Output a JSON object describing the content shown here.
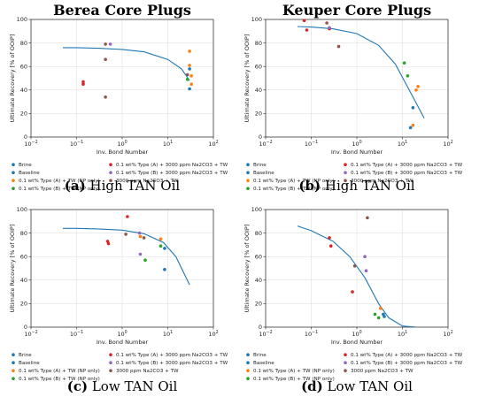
{
  "figure": {
    "panels": [
      {
        "title": "Berea Core Plugs",
        "caption_letter": "(a)",
        "caption_text": "High TAN Oil",
        "legend": [
          [
            "Brine",
            "0.1 wt% Type (A) + 3000 ppm Na2CO3 + TW"
          ],
          [
            "Baseline",
            "0.1 wt% Type (B) + 3000 ppm Na2CO3 + TW"
          ],
          [
            "0.1 wt% Type (A) + TW (NP only)",
            "3000 ppm Na2CO3 + TW"
          ],
          [
            "0.1 wt% Type (B) + TW (NP only)",
            ""
          ]
        ]
      },
      {
        "title": "Keuper Core Plugs",
        "caption_letter": "(b)",
        "caption_text": "High TAN Oil",
        "legend": [
          [
            "Brine",
            "0.1 wt% Type (A) + 3000 ppm Na2CO3 + TW"
          ],
          [
            "Baseline",
            "0.1 wt% Type (B) + 3000 ppm Na2CO3 + TW"
          ],
          [
            "0.1 wt% Type (A) + TW (NP only)",
            "3000 ppm Na2CO3 + TW"
          ],
          [
            "0.1 wt% Type (B) + TW (NP only)",
            ""
          ]
        ]
      },
      {
        "title": "",
        "caption_letter": "(c)",
        "caption_text": "Low TAN Oil",
        "legend": [
          [
            "Brine",
            "0.1 wt% Type (A) + 3000 ppm Na2CO3 + TW"
          ],
          [
            "Baseline",
            "0.1 wt% Type (B) + 3000 ppm Na2CO3 + TW"
          ],
          [
            "0.1 wt% Type (A) + TW (NP only)",
            "3000 ppm Na2CO3 + TW"
          ],
          [
            "0.1 wt% Type (B) + TW (NP only)",
            ""
          ]
        ]
      },
      {
        "title": "",
        "caption_letter": "(d)",
        "caption_text": "Low TAN Oil",
        "legend": [
          [
            "Brine",
            "0.1 wt% Type (A) + 3000 ppm Na2CO3 + TW"
          ],
          [
            "Baseline",
            "0.1 wt% Type (B) + 3000 ppm Na2CO3 + TW"
          ],
          [
            "0.1 wt% Type (A) + TW (NP only)",
            "3000 ppm Na2CO3 + TW"
          ],
          [
            "0.1 wt% Type (B) + TW (NP only)",
            ""
          ]
        ]
      }
    ]
  },
  "series_colors": {
    "Brine": "#1f77b4",
    "Baseline": "#1f77b4",
    "0.1 wt% Type (A) + TW (NP only)": "#ff7f0e",
    "0.1 wt% Type (B) + TW (NP only)": "#2ca02c",
    "0.1 wt% Type (A) + 3000 ppm Na2CO3 + TW": "#d62728",
    "0.1 wt% Type (B) + 3000 ppm Na2CO3 + TW": "#9467bd",
    "3000 ppm Na2CO3 + TW": "#8c564b"
  },
  "chart_data": [
    {
      "type": "scatter",
      "title": "Berea Core Plugs",
      "xlabel": "Inv. Bond Number",
      "ylabel": "Ultimate Recovery [% of OOIP]",
      "xscale": "log",
      "xlim": [
        0.01,
        100
      ],
      "ylim": [
        0,
        100
      ],
      "xticks": [
        "10^-2",
        "10^-1",
        "10^0",
        "10^1",
        "10^2"
      ],
      "yticks": [
        0,
        20,
        40,
        60,
        80,
        100
      ],
      "grid": true,
      "legend_position": "bottom",
      "fit_curve": {
        "x": [
          0.05,
          0.1,
          0.3,
          1,
          3,
          10,
          20,
          30
        ],
        "y": [
          76,
          76,
          75.5,
          74.5,
          72.5,
          66,
          58,
          48
        ]
      },
      "series": [
        {
          "name": "Brine",
          "x": [
            30
          ],
          "y": [
            41
          ]
        },
        {
          "name": "Baseline",
          "x": [
            30
          ],
          "y": [
            58
          ]
        },
        {
          "name": "0.1 wt% Type (A) + TW (NP only)",
          "x": [
            30,
            30,
            33,
            33
          ],
          "y": [
            73,
            61,
            52,
            45
          ]
        },
        {
          "name": "0.1 wt% Type (B) + TW (NP only)",
          "x": [
            27
          ],
          "y": [
            49
          ]
        },
        {
          "name": "0.1 wt% Type (A) + 3000 ppm Na2CO3 + TW",
          "x": [
            0.14,
            0.14
          ],
          "y": [
            47,
            45
          ]
        },
        {
          "name": "0.1 wt% Type (B) + 3000 ppm Na2CO3 + TW",
          "x": [
            0.55
          ],
          "y": [
            79
          ]
        },
        {
          "name": "3000 ppm Na2CO3 + TW",
          "x": [
            0.43,
            0.43,
            0.43,
            27
          ],
          "y": [
            79,
            66,
            34,
            53
          ]
        }
      ]
    },
    {
      "type": "scatter",
      "title": "Keuper Core Plugs",
      "xlabel": "Inv. Bond Number",
      "ylabel": "Ultimate Recovery [% of OOIP]",
      "xscale": "log",
      "xlim": [
        0.01,
        100
      ],
      "ylim": [
        0,
        100
      ],
      "xticks": [
        "10^-2",
        "10^-1",
        "10^0",
        "10^1",
        "10^2"
      ],
      "yticks": [
        0,
        20,
        40,
        60,
        80,
        100
      ],
      "grid": true,
      "legend_position": "bottom",
      "fit_curve": {
        "x": [
          0.05,
          0.1,
          0.3,
          1,
          3,
          7,
          15,
          30
        ],
        "y": [
          94,
          93.5,
          92,
          88,
          78,
          62,
          38,
          16
        ]
      },
      "series": [
        {
          "name": "Brine",
          "x": [
            17
          ],
          "y": [
            25
          ]
        },
        {
          "name": "Baseline",
          "x": [
            15
          ],
          "y": [
            8
          ]
        },
        {
          "name": "0.1 wt% Type (A) + TW (NP only)",
          "x": [
            17,
            20,
            22
          ],
          "y": [
            10,
            40,
            43
          ]
        },
        {
          "name": "0.1 wt% Type (B) + TW (NP only)",
          "x": [
            11,
            13
          ],
          "y": [
            63,
            52
          ]
        },
        {
          "name": "0.1 wt% Type (A) + 3000 ppm Na2CO3 + TW",
          "x": [
            0.07,
            0.08,
            0.25
          ],
          "y": [
            99,
            91,
            92
          ]
        },
        {
          "name": "0.1 wt% Type (B) + 3000 ppm Na2CO3 + TW",
          "x": [
            0.25
          ],
          "y": [
            93
          ]
        },
        {
          "name": "3000 ppm Na2CO3 + TW",
          "x": [
            0.22,
            0.4
          ],
          "y": [
            97,
            77
          ]
        }
      ]
    },
    {
      "type": "scatter",
      "title": "",
      "xlabel": "Inv. Bond Number",
      "ylabel": "Ultimate Recovery [% of OOIP]",
      "xscale": "log",
      "xlim": [
        0.01,
        100
      ],
      "ylim": [
        0,
        100
      ],
      "xticks": [
        "10^-2",
        "10^-1",
        "10^0",
        "10^1",
        "10^2"
      ],
      "yticks": [
        0,
        20,
        40,
        60,
        80,
        100
      ],
      "grid": true,
      "legend_position": "bottom",
      "fit_curve": {
        "x": [
          0.05,
          0.1,
          0.3,
          1,
          3,
          8,
          15,
          30
        ],
        "y": [
          84,
          84,
          83.5,
          82.5,
          79.5,
          72,
          60,
          36
        ]
      },
      "series": [
        {
          "name": "Brine",
          "x": [
            8.5
          ],
          "y": [
            49
          ]
        },
        {
          "name": "Baseline",
          "x": [
            8.5
          ],
          "y": [
            67
          ]
        },
        {
          "name": "0.1 wt% Type (A) + TW (NP only)",
          "x": [
            2.5,
            7
          ],
          "y": [
            77,
            75
          ]
        },
        {
          "name": "0.1 wt% Type (B) + TW (NP only)",
          "x": [
            3.2,
            7
          ],
          "y": [
            57,
            69
          ]
        },
        {
          "name": "0.1 wt% Type (A) + 3000 ppm Na2CO3 + TW",
          "x": [
            0.48,
            0.5,
            1.3
          ],
          "y": [
            73,
            71,
            94
          ]
        },
        {
          "name": "0.1 wt% Type (B) + 3000 ppm Na2CO3 + TW",
          "x": [
            2.4,
            2.5
          ],
          "y": [
            80,
            62
          ]
        },
        {
          "name": "3000 ppm Na2CO3 + TW",
          "x": [
            1.2,
            3.0
          ],
          "y": [
            79,
            76
          ]
        }
      ]
    },
    {
      "type": "scatter",
      "title": "",
      "xlabel": "Inv. Bond Number",
      "ylabel": "Ultimate Recovery [% of OOIP]",
      "xscale": "log",
      "xlim": [
        0.01,
        100
      ],
      "ylim": [
        0,
        100
      ],
      "xticks": [
        "10^-2",
        "10^-1",
        "10^0",
        "10^1",
        "10^2"
      ],
      "yticks": [
        0,
        20,
        40,
        60,
        80,
        100
      ],
      "grid": true,
      "legend_position": "bottom",
      "fit_curve": {
        "x": [
          0.05,
          0.1,
          0.3,
          0.7,
          1.5,
          3,
          5,
          10,
          20
        ],
        "y": [
          86,
          82,
          73,
          60,
          42,
          20,
          8,
          1,
          0
        ]
      },
      "series": [
        {
          "name": "Brine",
          "x": [
            3.8
          ],
          "y": [
            11
          ]
        },
        {
          "name": "Baseline",
          "x": [
            4.0
          ],
          "y": [
            9
          ]
        },
        {
          "name": "0.1 wt% Type (A) + TW (NP only)",
          "x": [
            3.3
          ],
          "y": [
            16
          ]
        },
        {
          "name": "0.1 wt% Type (B) + TW (NP only)",
          "x": [
            2.5,
            3.0
          ],
          "y": [
            11,
            8
          ]
        },
        {
          "name": "0.1 wt% Type (A) + 3000 ppm Na2CO3 + TW",
          "x": [
            0.25,
            0.27,
            0.8
          ],
          "y": [
            76,
            69,
            30
          ]
        },
        {
          "name": "0.1 wt% Type (B) + 3000 ppm Na2CO3 + TW",
          "x": [
            1.5,
            1.6
          ],
          "y": [
            60,
            48
          ]
        },
        {
          "name": "3000 ppm Na2CO3 + TW",
          "x": [
            0.9,
            1.7
          ],
          "y": [
            52,
            93
          ]
        }
      ]
    }
  ]
}
